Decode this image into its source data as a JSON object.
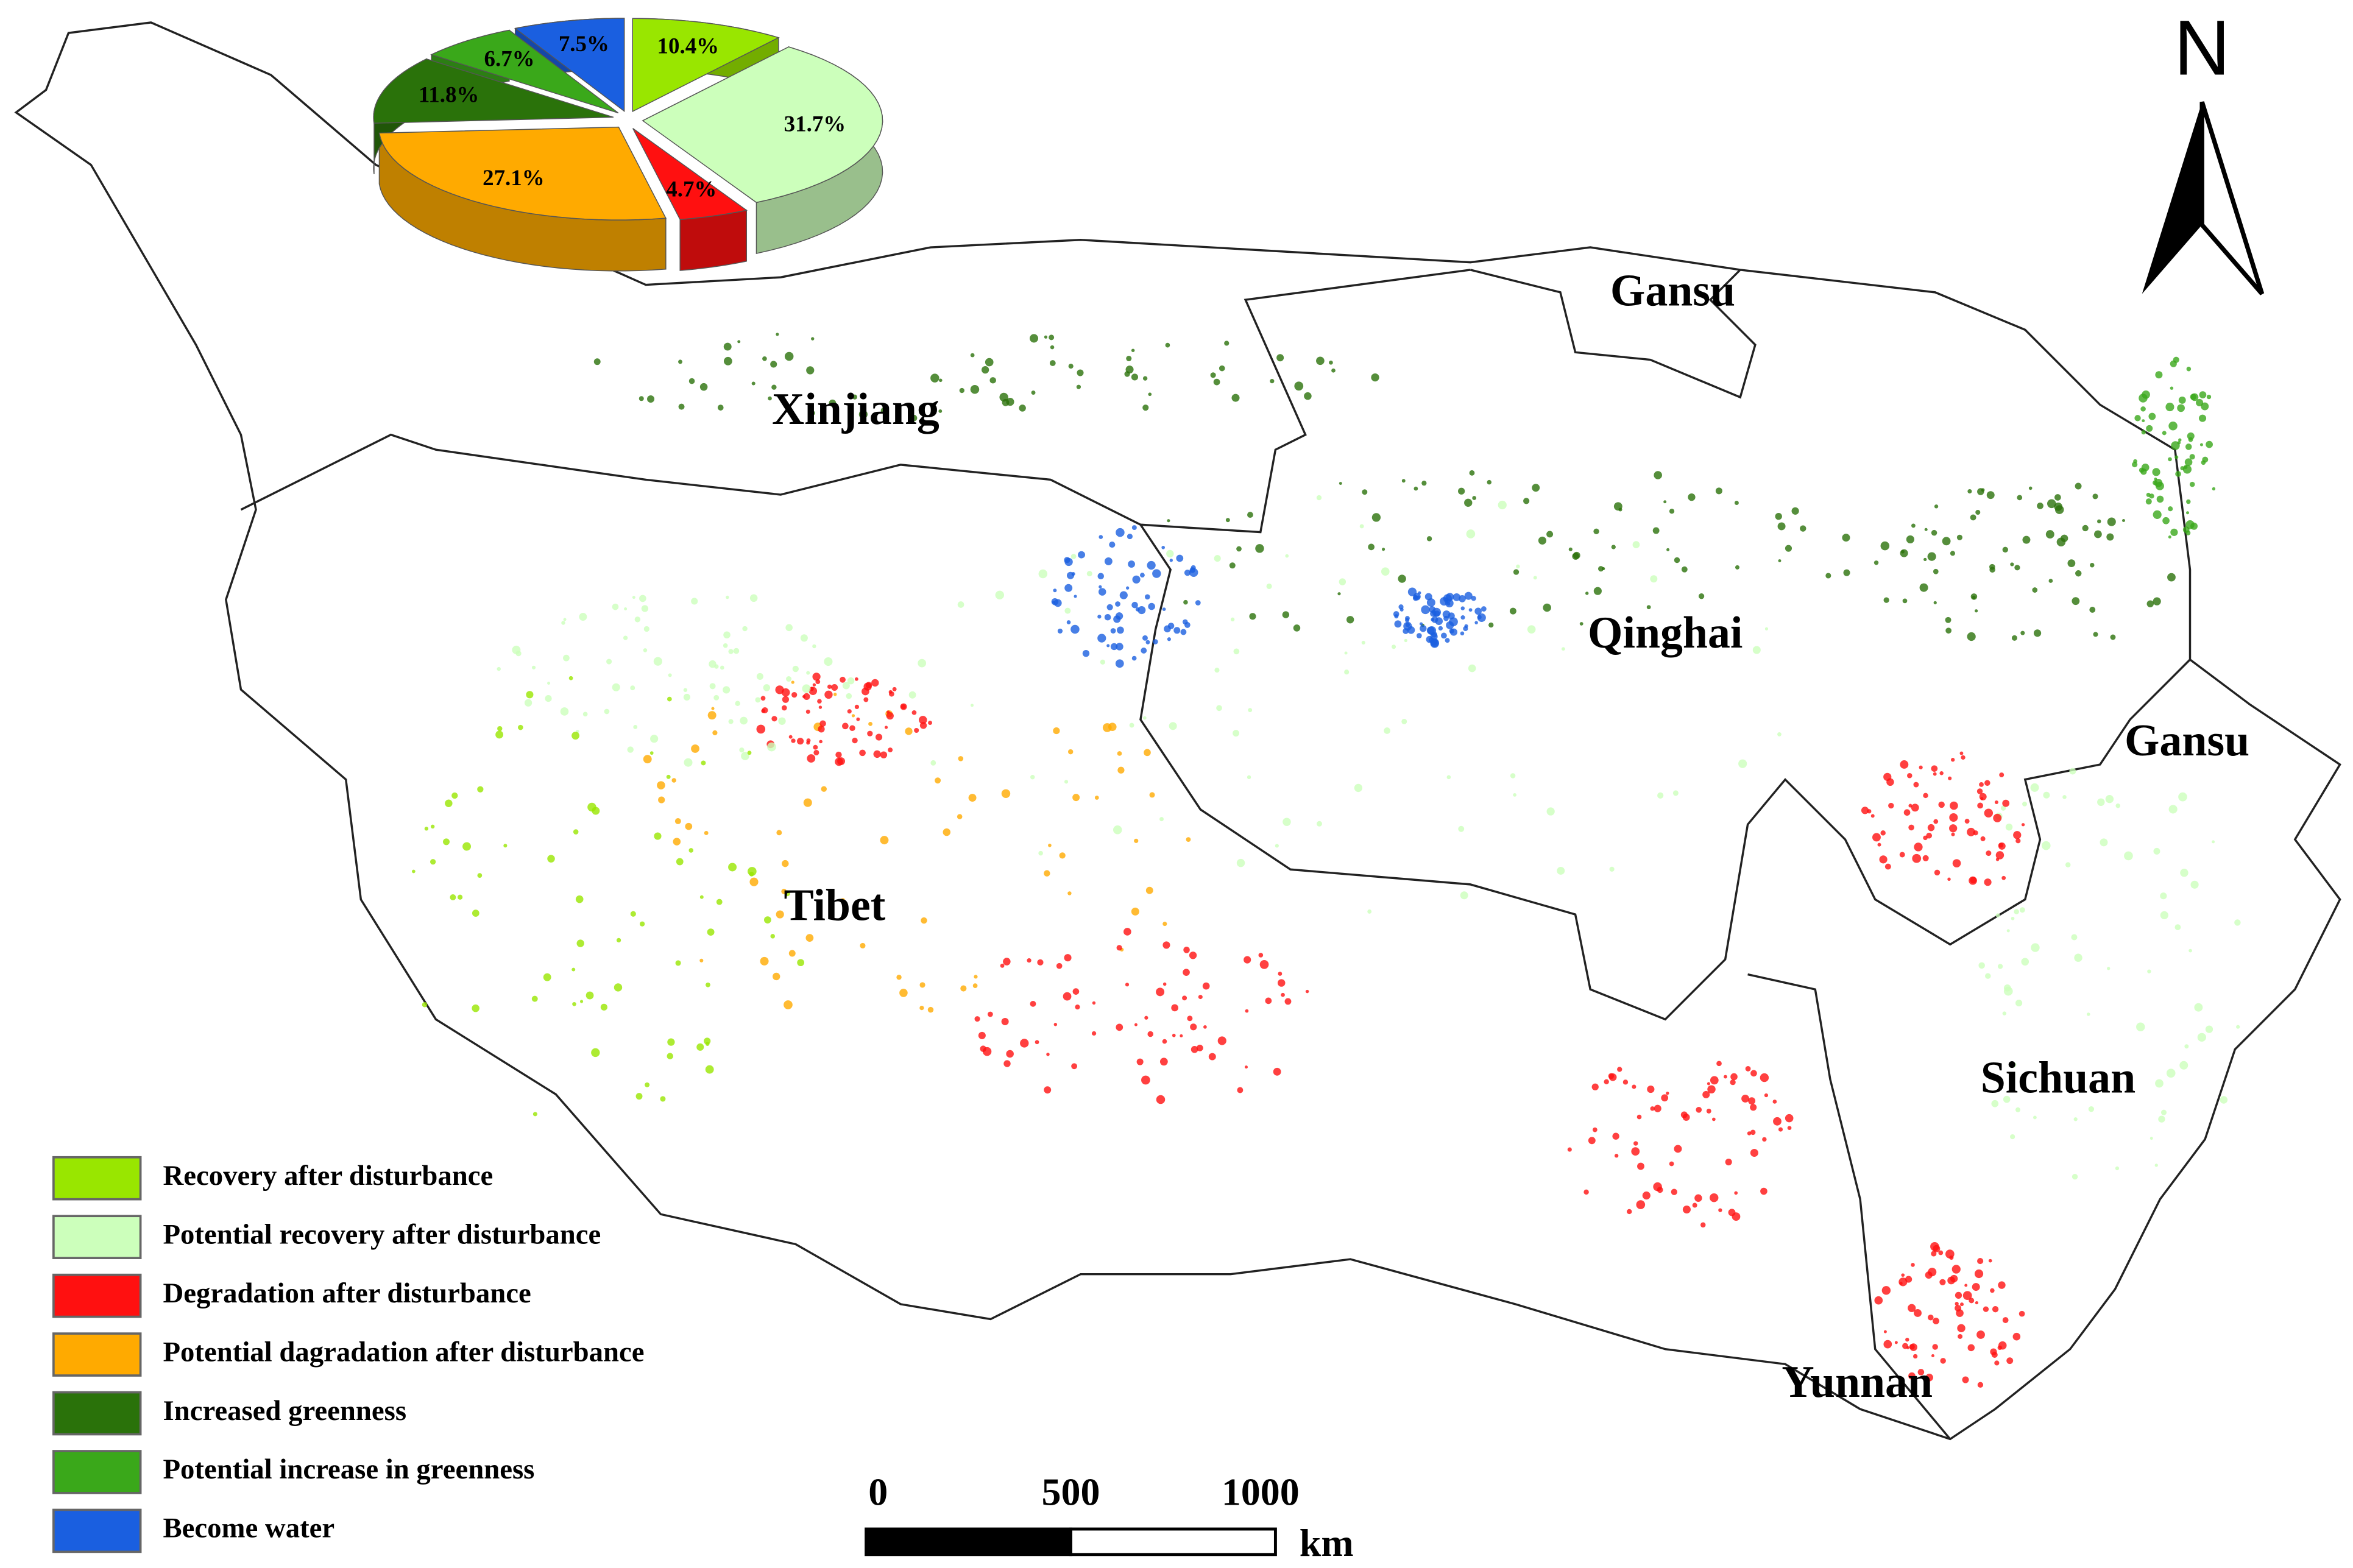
{
  "chart_data": {
    "type": "pie",
    "categories": [
      "Recovery after disturbance",
      "Potential recovery after disturbance",
      "Degradation after disturbance",
      "Potential dagradation after disturbance",
      "Increased greenness",
      "Potential increase in greenness",
      "Become water"
    ],
    "values": [
      10.4,
      31.7,
      4.7,
      27.1,
      11.8,
      6.7,
      7.5
    ],
    "value_labels": [
      "10.4%",
      "31.7%",
      "4.7%",
      "27.1%",
      "11.8%",
      "6.7%",
      "7.5%"
    ],
    "colors": [
      "#99e600",
      "#ccffbb",
      "#ff1010",
      "#ffaa00",
      "#2a720a",
      "#3aa81a",
      "#1a5fe0"
    ]
  },
  "regions": [
    "Xinjiang",
    "Gansu",
    "Qinghai",
    "Gansu",
    "Tibet",
    "Sichuan",
    "Yunnan"
  ],
  "north_label": "N",
  "scale_bar": {
    "ticks": [
      0,
      500,
      1000
    ],
    "unit": "km"
  }
}
